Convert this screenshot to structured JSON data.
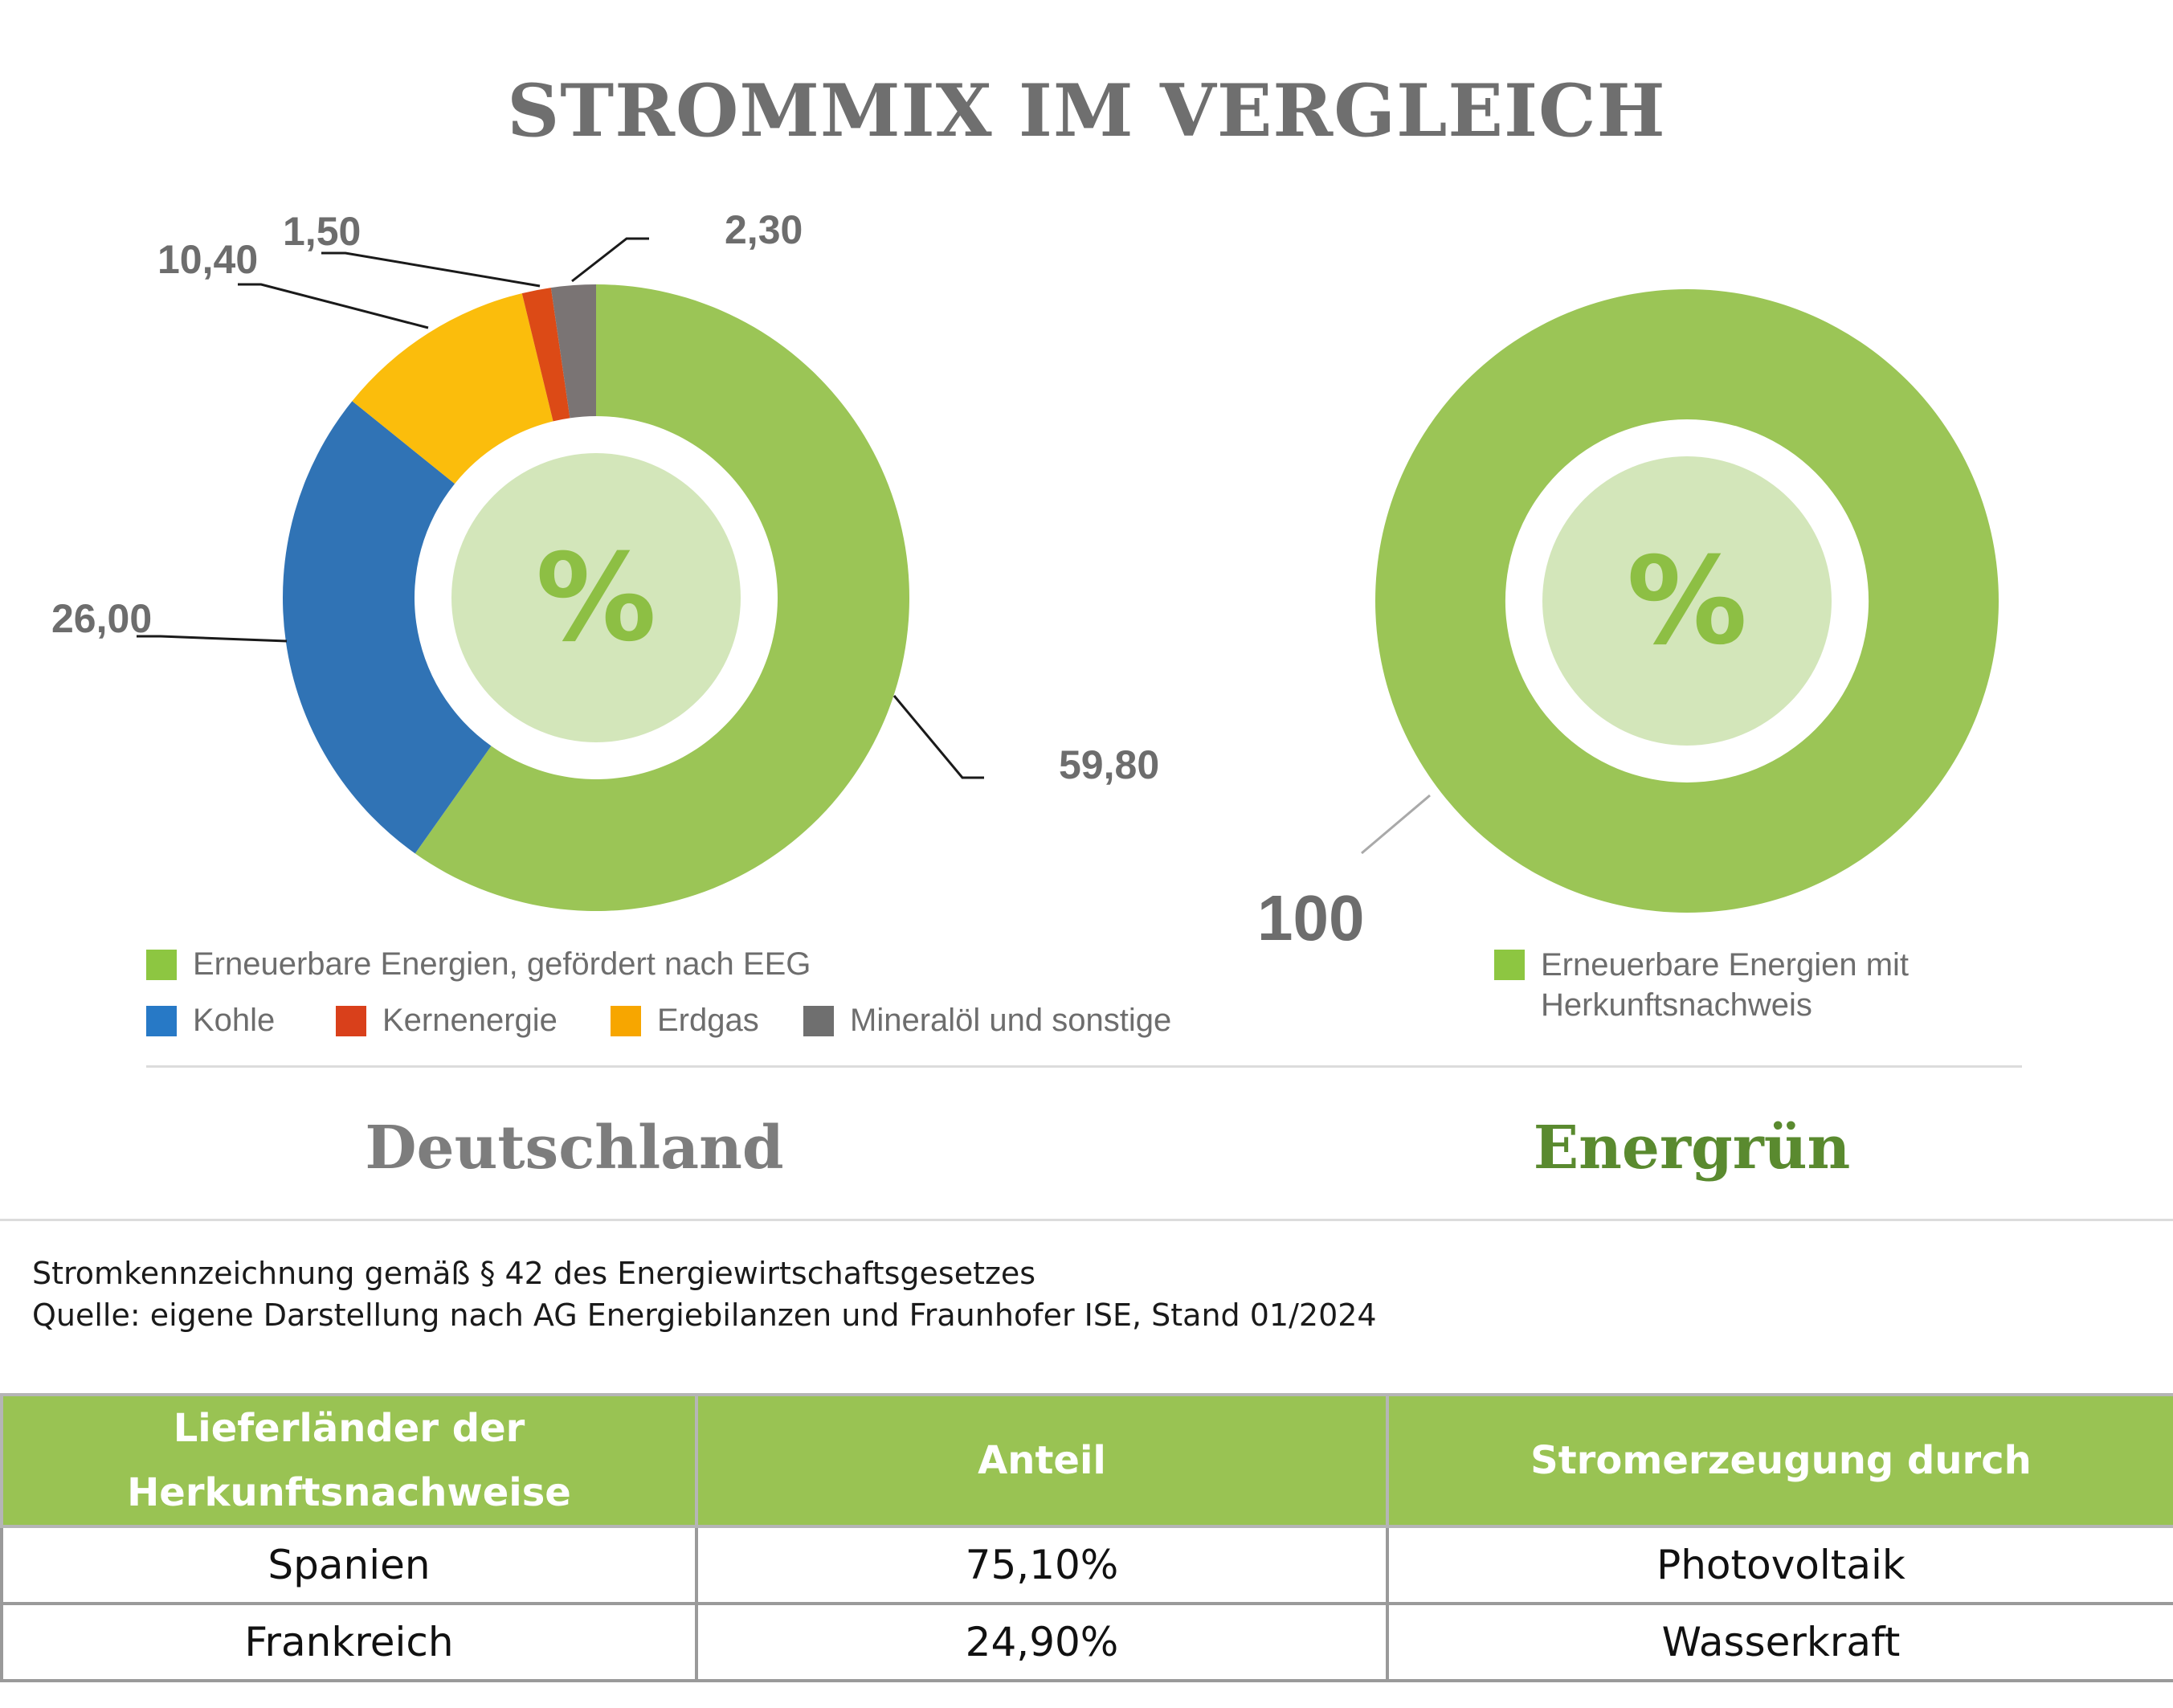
{
  "title": "STROMMIX IM VERGLEICH",
  "chart_data": [
    {
      "type": "pie",
      "variant": "donut",
      "center_label": "%",
      "label_name": "Deutschland",
      "slices": [
        {
          "name": "Erneuerbare Energien, gefördert nach EEG",
          "value": 59.8,
          "label": "59,80",
          "color": "#9bc556"
        },
        {
          "name": "Kohle",
          "value": 26.0,
          "label": "26,00",
          "color": "#3073b5"
        },
        {
          "name": "Erdgas",
          "value": 10.4,
          "label": "10,40",
          "color": "#fbbd0c"
        },
        {
          "name": "Kernenergie",
          "value": 1.5,
          "label": "1,50",
          "color": "#dc4a16"
        },
        {
          "name": "Mineralöl und sonstige",
          "value": 2.3,
          "label": "2,30",
          "color": "#7a7474"
        }
      ]
    },
    {
      "type": "pie",
      "variant": "donut",
      "center_label": "%",
      "label_name": "Energrün",
      "slices": [
        {
          "name": "Erneuerbare Energien mit Herkunftsnachweis",
          "value": 100,
          "label": "100",
          "color": "#9bc556"
        }
      ]
    }
  ],
  "legend_left": [
    {
      "label": "Erneuerbare Energien, gefördert nach EEG",
      "color": "#8dc641"
    },
    {
      "label": "Kohle",
      "color": "#2779c6"
    },
    {
      "label": "Kernenergie",
      "color": "#d9401b"
    },
    {
      "label": "Erdgas",
      "color": "#f7a600"
    },
    {
      "label": "Mineralöl und sonstige",
      "color": "#6f6f6f"
    }
  ],
  "legend_right": [
    {
      "line1": "Erneuerbare Energien mit",
      "line2": "Herkunftsnachweis",
      "color": "#8dc641"
    }
  ],
  "subtitles": {
    "left": "Deutschland",
    "right": "Energrün",
    "left_color": "#7d7d7d",
    "right_color": "#5a8a2f"
  },
  "notes": {
    "line1": "Stromkennzeichnung gemäß § 42 des Energiewirtschaftsgesetzes",
    "line2": "Quelle: eigene Darstellung nach AG Energiebilanzen und Fraunhofer ISE, Stand 01/2024"
  },
  "table": {
    "headers": {
      "col1_line1": "Lieferländer der",
      "col1_line2": "Herkunftsnachweise",
      "col2": "Anteil",
      "col3": "Stromerzeugung durch"
    },
    "rows": [
      {
        "country": "Spanien",
        "share": "75,10%",
        "source": "Photovoltaik"
      },
      {
        "country": "Frankreich",
        "share": "24,90%",
        "source": "Wasserkraft"
      }
    ]
  },
  "colors": {
    "center_fill": "#d3e6ba",
    "center_text": "#8dbf44",
    "header_bg": "#99c353"
  }
}
